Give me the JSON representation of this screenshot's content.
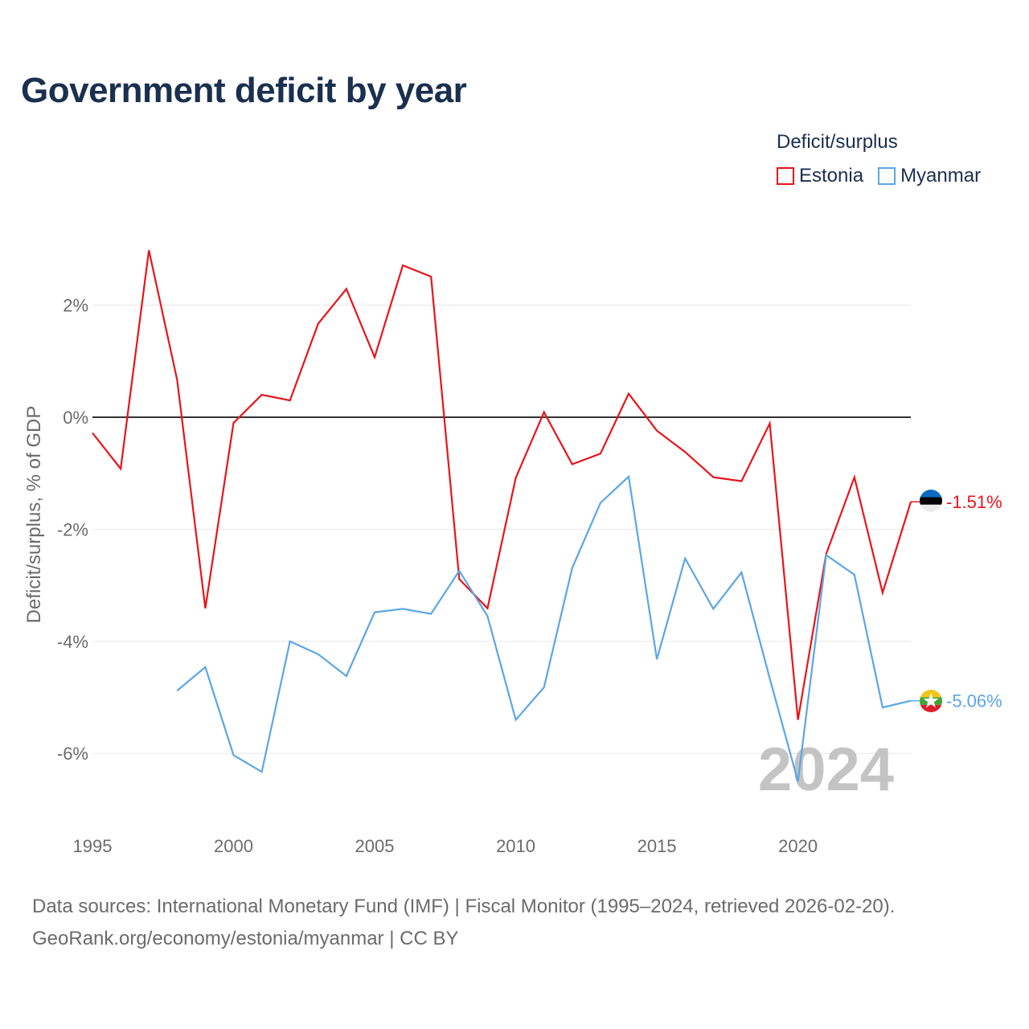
{
  "page": {
    "title": "Government deficit by year",
    "sources_line1": "Data sources: International Monetary Fund (IMF) | Fiscal Monitor (1995–2024, retrieved 2026-02-20).",
    "sources_line2": "GeoRank.org/economy/estonia/myanmar | CC BY",
    "watermark_year": "2024"
  },
  "legend": {
    "title": "Deficit/surplus",
    "items": [
      {
        "label": "Estonia",
        "color": "#e8141b"
      },
      {
        "label": "Myanmar",
        "color": "#5ba6e6"
      }
    ]
  },
  "chart_data": {
    "type": "line",
    "title": "Government deficit by year",
    "xlabel": "",
    "ylabel": "Deficit/surplus, % of GDP",
    "xlim": [
      1995,
      2024
    ],
    "ylim": [
      -7,
      3.5
    ],
    "x_ticks": [
      1995,
      2000,
      2005,
      2010,
      2015,
      2020
    ],
    "x_tick_labels": [
      "1995",
      "2000",
      "2005",
      "2010",
      "2015",
      "2020"
    ],
    "y_ticks": [
      2,
      0,
      -2,
      -4,
      -6
    ],
    "y_tick_labels": [
      "2%",
      "0%",
      "-2%",
      "-4%",
      "-6%"
    ],
    "grid": true,
    "series": [
      {
        "name": "Estonia",
        "color": "#e8141b",
        "x": [
          1995,
          1996,
          1997,
          1998,
          1999,
          2000,
          2001,
          2002,
          2003,
          2004,
          2005,
          2006,
          2007,
          2008,
          2009,
          2010,
          2011,
          2012,
          2013,
          2014,
          2015,
          2016,
          2017,
          2018,
          2019,
          2020,
          2021,
          2022,
          2023,
          2024
        ],
        "values": [
          -0.28,
          -0.92,
          2.98,
          0.67,
          -3.41,
          -0.1,
          0.4,
          0.3,
          1.67,
          2.29,
          1.07,
          2.71,
          2.51,
          -2.89,
          -3.41,
          -1.08,
          0.09,
          -0.84,
          -0.65,
          0.42,
          -0.24,
          -0.62,
          -1.07,
          -1.14,
          -0.11,
          -5.4,
          -2.44,
          -1.07,
          -3.13,
          -1.51
        ],
        "end_label": "-1.51%"
      },
      {
        "name": "Myanmar",
        "color": "#5ba6e6",
        "x": [
          1998,
          1999,
          2000,
          2001,
          2002,
          2003,
          2004,
          2005,
          2006,
          2007,
          2008,
          2009,
          2010,
          2011,
          2012,
          2013,
          2014,
          2015,
          2016,
          2017,
          2018,
          2019,
          2020,
          2021,
          2022,
          2023,
          2024
        ],
        "values": [
          -4.88,
          -4.46,
          -6.03,
          -6.33,
          -4.0,
          -4.23,
          -4.62,
          -3.48,
          -3.42,
          -3.51,
          -2.74,
          -3.55,
          -5.4,
          -4.82,
          -2.69,
          -1.53,
          -1.06,
          -4.32,
          -2.52,
          -3.42,
          -2.77,
          -4.66,
          -6.5,
          -2.46,
          -2.81,
          -5.18,
          -5.06
        ],
        "end_label": "-5.06%"
      }
    ]
  }
}
